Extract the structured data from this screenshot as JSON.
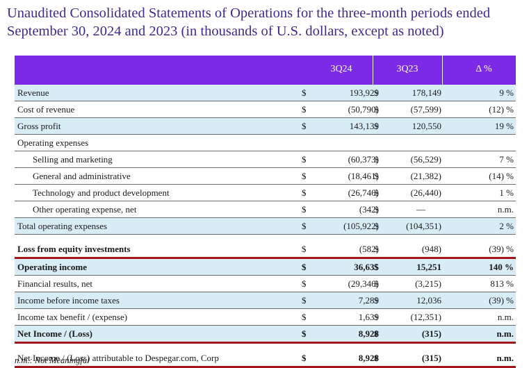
{
  "title": "Unaudited Consolidated Statements of Operations for the three-month periods ended September 30, 2024 and 2023 (in thousands of U.S. dollars, except as noted)",
  "header": {
    "col1": "3Q24",
    "col2": "3Q23",
    "col3": "Δ %"
  },
  "rows": [
    {
      "label": "Revenue",
      "d1": "$",
      "v1": "193,929",
      "d2": "$",
      "v2": "178,149",
      "v3": "9 %"
    },
    {
      "label": "Cost of revenue",
      "d1": "$",
      "v1": "(50,790)",
      "d2": "$",
      "v2": "(57,599)",
      "v3": "(12) %"
    },
    {
      "label": "Gross profit",
      "d1": "$",
      "v1": "143,139",
      "d2": "$",
      "v2": "120,550",
      "v3": "19 %"
    },
    {
      "label": "Operating expenses",
      "d1": "",
      "v1": "",
      "d2": "",
      "v2": "",
      "v3": ""
    },
    {
      "label": "Selling and marketing",
      "d1": "$",
      "v1": "(60,373)",
      "d2": "$",
      "v2": "(56,529)",
      "v3": "7 %"
    },
    {
      "label": "General and administrative",
      "d1": "$",
      "v1": "(18,461)",
      "d2": "$",
      "v2": "(21,382)",
      "v3": "(14) %"
    },
    {
      "label": "Technology and product development",
      "d1": "$",
      "v1": "(26,746)",
      "d2": "$",
      "v2": "(26,440)",
      "v3": "1 %"
    },
    {
      "label": "Other operating expense, net",
      "d1": "$",
      "v1": "(342)",
      "d2": "$",
      "v2": "—",
      "v3": "n.m."
    },
    {
      "label": "Total operating expenses",
      "d1": "$",
      "v1": "(105,922)",
      "d2": "$",
      "v2": "(104,351)",
      "v3": "2 %"
    },
    {
      "label": "Loss from equity investments",
      "d1": "$",
      "v1": "(582)",
      "d2": "$",
      "v2": "(948)",
      "v3": "(39) %"
    },
    {
      "label": "Operating income",
      "d1": "$",
      "v1": "36,635",
      "d2": "$",
      "v2": "15,251",
      "v3": "140 %"
    },
    {
      "label": "Financial results, net",
      "d1": "$",
      "v1": "(29,346)",
      "d2": "$",
      "v2": "(3,215)",
      "v3": "813 %"
    },
    {
      "label": "Income before income taxes",
      "d1": "$",
      "v1": "7,289",
      "d2": "$",
      "v2": "12,036",
      "v3": "(39) %"
    },
    {
      "label": "Income tax benefit / (expense)",
      "d1": "$",
      "v1": "1,639",
      "d2": "$",
      "v2": "(12,351)",
      "v3": "n.m."
    },
    {
      "label": "Net Income / (Loss)",
      "d1": "$",
      "v1": "8,928",
      "d2": "$",
      "v2": "(315)",
      "v3": "n.m."
    },
    {
      "label": "Net Income / (Loss) attributable to Despegar.com, Corp",
      "d1": "$",
      "v1": "8,928",
      "d2": "$",
      "v2": "(315)",
      "v3": "n.m."
    }
  ],
  "footnote": "n.m.: Not Meaningful",
  "colors": {
    "header_bg": "#7b2be6",
    "row_highlight": "#d8ecf6",
    "accent_rule": "#a3151a",
    "title_text": "#3b2b8f"
  }
}
